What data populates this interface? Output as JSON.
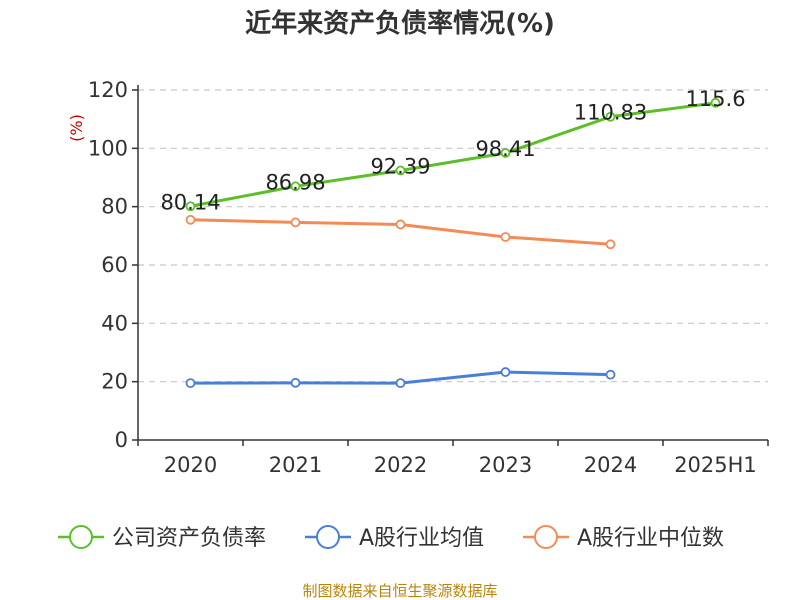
{
  "chart_data": {
    "type": "line",
    "title": "近年来资产负债率情况(%)",
    "ylabel": "(%)",
    "xlabel": "",
    "ylim": [
      0,
      120
    ],
    "yticks": [
      0,
      20,
      40,
      60,
      80,
      100,
      120
    ],
    "categories": [
      "2020",
      "2021",
      "2022",
      "2023",
      "2024",
      "2025H1"
    ],
    "grid": true,
    "legend_position": "bottom",
    "series": [
      {
        "name": "公司资产负债率",
        "color": "#5cbf2a",
        "values": [
          80.14,
          86.98,
          92.39,
          98.41,
          110.83,
          115.6
        ],
        "labels": [
          "80.14",
          "86.98",
          "92.39",
          "98.41",
          "110.83",
          "115.6"
        ]
      },
      {
        "name": "A股行业均值",
        "color": "#4a7fd6",
        "values": [
          19.5,
          19.6,
          19.5,
          23.3,
          22.4,
          null
        ]
      },
      {
        "name": "A股行业中位数",
        "color": "#f28b55",
        "values": [
          75.5,
          74.6,
          73.9,
          69.6,
          67.1,
          null
        ]
      }
    ],
    "source": "制图数据来自恒生聚源数据库"
  }
}
